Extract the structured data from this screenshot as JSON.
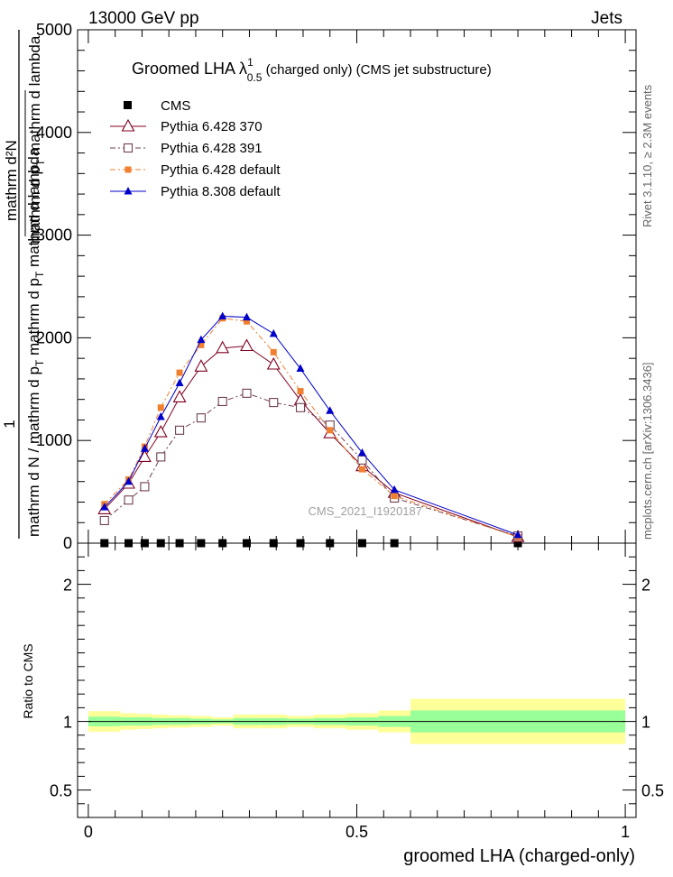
{
  "header": {
    "left": "13000 GeV pp",
    "right": "Jets"
  },
  "side_text": {
    "rivet": "Rivet 3.1.10, ≥ 2.3M events",
    "mcplots": "mcplots.cern.ch [arXiv:1306.3436]"
  },
  "watermark": "CMS_2021_I1920187",
  "ylabel": {
    "frac_top": "1",
    "frac_mid_num": "mathrm d²N",
    "frac_mid_den": "mathrm d p",
    "frac_mid_den_sub": "T",
    "frac_mid_den2": " mathrm d lambda",
    "frac_bottom": "mathrm d N / mathrm d p",
    "frac_bottom_sub": "T",
    "frac_bottom2": " mathrm d p",
    "frac_bottom2_sub": "T",
    "frac_bottom3": " mathrm d lambda"
  },
  "ratio_ylabel": "Ratio to CMS",
  "chart_data": {
    "type": "line",
    "title": "Groomed LHA  λ",
    "title_sup": "1",
    "title_sub": "0.5",
    "title_rest": " (charged only) (CMS jet substructure)",
    "xlabel": "groomed LHA (charged-only)",
    "xlim": [
      -0.02,
      1.02
    ],
    "ylim": [
      0,
      5000
    ],
    "x_ticks": [
      {
        "v": 0,
        "label": "0"
      },
      {
        "v": 0.5,
        "label": "0.5"
      },
      {
        "v": 1,
        "label": "1"
      }
    ],
    "y_ticks": [
      {
        "v": 0,
        "label": "0"
      },
      {
        "v": 1000,
        "label": "1000"
      },
      {
        "v": 2000,
        "label": "2000"
      },
      {
        "v": 3000,
        "label": "3000"
      },
      {
        "v": 4000,
        "label": "4000"
      },
      {
        "v": 5000,
        "label": "5000"
      }
    ],
    "x": [
      0.03,
      0.075,
      0.105,
      0.135,
      0.17,
      0.21,
      0.25,
      0.295,
      0.345,
      0.395,
      0.45,
      0.51,
      0.57,
      0.8
    ],
    "cms_values": [
      0,
      0,
      0,
      0,
      0,
      0,
      0,
      0,
      0,
      0,
      0,
      0,
      0,
      0
    ],
    "cms_legend": "CMS",
    "series": [
      {
        "name": "Pythia 6.428 370",
        "color": "#800020",
        "marker": "open-triangle",
        "dash": "",
        "values": [
          330,
          580,
          840,
          1080,
          1420,
          1720,
          1900,
          1920,
          1740,
          1390,
          1070,
          750,
          490,
          60
        ]
      },
      {
        "name": "Pythia 6.428 391",
        "color": "#704050",
        "marker": "open-square",
        "dash": "6,3,2,3",
        "values": [
          220,
          420,
          550,
          840,
          1100,
          1220,
          1380,
          1460,
          1370,
          1320,
          1150,
          810,
          440,
          70
        ]
      },
      {
        "name": "Pythia 6.428 default",
        "color": "#f08030",
        "marker": "filled-square",
        "dash": "6,3,2,3",
        "values": [
          380,
          620,
          940,
          1320,
          1660,
          1930,
          2190,
          2160,
          1860,
          1480,
          1100,
          720,
          460,
          60
        ]
      },
      {
        "name": "Pythia 8.308 default",
        "color": "#0000cc",
        "marker": "filled-triangle",
        "dash": "",
        "values": [
          350,
          600,
          920,
          1230,
          1560,
          1980,
          2210,
          2200,
          2040,
          1700,
          1290,
          880,
          520,
          80
        ]
      }
    ],
    "ratio": {
      "ylim": [
        0.3,
        2.3
      ],
      "y_ticks": [
        {
          "v": 0.5,
          "label": "0.5"
        },
        {
          "v": 1,
          "label": "1"
        },
        {
          "v": 2,
          "label": "2"
        }
      ],
      "bins": [
        0.0,
        0.06,
        0.09,
        0.12,
        0.15,
        0.19,
        0.23,
        0.27,
        0.32,
        0.37,
        0.42,
        0.48,
        0.54,
        0.6,
        1.0
      ],
      "green": [
        0.035,
        0.03,
        0.03,
        0.025,
        0.025,
        0.02,
        0.015,
        0.025,
        0.025,
        0.02,
        0.025,
        0.03,
        0.04,
        0.08
      ],
      "yellow": [
        0.075,
        0.06,
        0.055,
        0.05,
        0.045,
        0.04,
        0.03,
        0.05,
        0.05,
        0.04,
        0.05,
        0.06,
        0.08,
        0.165
      ]
    }
  }
}
